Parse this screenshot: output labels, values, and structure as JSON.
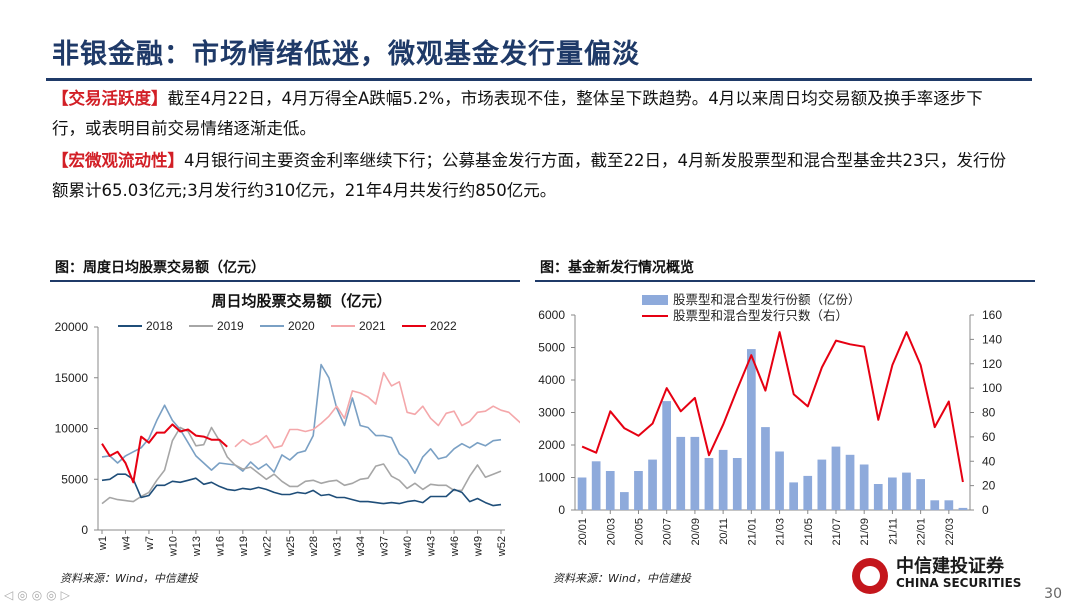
{
  "page": {
    "title": "非银金融：市场情绪低迷，微观基金发行量偏淡",
    "paragraphs": [
      {
        "tag": "【交易活跃度】",
        "text": "截至4月22日，4月万得全A跌幅5.2%，市场表现不佳，整体呈下跌趋势。4月以来周日均交易额及换手率逐步下行，或表明目前交易情绪逐渐走低。"
      },
      {
        "tag": "【宏微观流动性】",
        "text": "4月银行间主要资金利率继续下行；公募基金发行方面，截至22日，4月新发股票型和混合型基金共23只，发行份额累计65.03亿元;3月发行约310亿元，21年4月共发行约850亿元。"
      }
    ],
    "page_number": "30",
    "nav_icons": "◁◎◎◎▷"
  },
  "figure1": {
    "caption": "图：周度日均股票交易额（亿元）",
    "source": "资料来源：Wind，中信建投"
  },
  "figure2": {
    "caption": "图：基金新发行情况概览",
    "source": "资料来源：Wind，中信建投"
  },
  "logo": {
    "cn": "中信建投证券",
    "en": "CHINA SECURITIES",
    "color": "#c4161c"
  },
  "chart_data": [
    {
      "type": "line",
      "title": "周日均股票交易额（亿元）",
      "ylim": [
        0,
        20000
      ],
      "yticks": [
        0,
        5000,
        10000,
        15000,
        20000
      ],
      "x_tick_labels": [
        "w1",
        "w4",
        "w7",
        "w10",
        "w13",
        "w16",
        "w19",
        "w22",
        "w25",
        "w28",
        "w31",
        "w34",
        "w37",
        "w40",
        "w43",
        "w46",
        "w49",
        "w52"
      ],
      "series": [
        {
          "name": "2018",
          "color": "#1f4e79",
          "values": [
            4900,
            5000,
            5500,
            5500,
            5000,
            3200,
            3400,
            4400,
            4400,
            4800,
            4700,
            4900,
            5100,
            4500,
            4700,
            4300,
            4000,
            3900,
            4100,
            4000,
            4200,
            4000,
            3700,
            3500,
            3500,
            3700,
            3600,
            3900,
            3400,
            3500,
            3200,
            3200,
            3000,
            2800,
            2800,
            2700,
            2600,
            2700,
            2600,
            2800,
            2900,
            2700,
            3300,
            3300,
            3300,
            4000,
            3700,
            2800,
            3100,
            2700,
            2400,
            2500
          ]
        },
        {
          "name": "2019",
          "color": "#a6a6a6",
          "values": [
            2600,
            3200,
            3000,
            2900,
            2800,
            3300,
            3700,
            4900,
            5900,
            8800,
            10100,
            9700,
            8300,
            8400,
            10100,
            8800,
            7200,
            6400,
            6000,
            6200,
            5600,
            5000,
            5500,
            4800,
            4300,
            4300,
            4800,
            4900,
            4600,
            4800,
            4900,
            4400,
            4600,
            5000,
            5100,
            6300,
            6500,
            5300,
            4900,
            4100,
            4600,
            4000,
            4500,
            4400,
            4400,
            3900,
            3900,
            5300,
            6400,
            5200,
            5500,
            5800
          ]
        },
        {
          "name": "2020",
          "color": "#7aa0c4",
          "values": [
            7200,
            7300,
            6600,
            7300,
            7700,
            8100,
            9000,
            10800,
            12300,
            10800,
            9900,
            8600,
            7300,
            6600,
            5900,
            6600,
            6500,
            6400,
            5800,
            6700,
            6000,
            6500,
            5700,
            7400,
            6900,
            7600,
            7800,
            9300,
            16300,
            15000,
            12000,
            10300,
            13000,
            10300,
            10100,
            9300,
            9300,
            9100,
            7500,
            6900,
            5600,
            7200,
            8000,
            7000,
            7200,
            8000,
            8500,
            8100,
            8600,
            8300,
            8800,
            8900
          ]
        },
        {
          "name": "2021",
          "color": "#f4a7aa",
          "values": [
            null,
            null,
            null,
            null,
            null,
            null,
            null,
            null,
            null,
            null,
            null,
            null,
            null,
            null,
            null,
            null,
            null,
            8200,
            8900,
            8400,
            8700,
            9300,
            8100,
            8300,
            9900,
            9900,
            9700,
            9900,
            10500,
            11200,
            12200,
            11000,
            13700,
            13500,
            13100,
            12400,
            15500,
            14200,
            14600,
            11600,
            11400,
            12200,
            11000,
            10300,
            11500,
            11700,
            10300,
            10700,
            11600,
            11700,
            12200,
            11800,
            11600,
            10900,
            10200
          ]
        },
        {
          "name": "2022",
          "color": "#e60012",
          "values": [
            8500,
            7300,
            7700,
            6600,
            4700,
            9200,
            8600,
            9600,
            9600,
            10400,
            9700,
            9900,
            9300,
            9200,
            8900,
            8900,
            8200
          ]
        }
      ]
    },
    {
      "type": "bar",
      "categories": [
        "20/01",
        "20/02",
        "20/03",
        "20/04",
        "20/05",
        "20/06",
        "20/07",
        "20/08",
        "20/09",
        "20/10",
        "20/11",
        "20/12",
        "21/01",
        "21/02",
        "21/03",
        "21/04",
        "21/05",
        "21/06",
        "21/07",
        "21/08",
        "21/09",
        "21/10",
        "21/11",
        "21/12",
        "22/01",
        "22/02",
        "22/03",
        "22/04"
      ],
      "x_tick_labels": [
        "20/01",
        "20/03",
        "20/05",
        "20/07",
        "20/09",
        "20/11",
        "21/01",
        "21/03",
        "21/05",
        "21/07",
        "21/09",
        "21/11",
        "22/01",
        "22/03"
      ],
      "series": [
        {
          "name": "股票型和混合型发行份额（亿份）",
          "axis": "left",
          "color": "#8eaadb",
          "values": [
            1000,
            1500,
            1200,
            550,
            1200,
            1550,
            3350,
            2250,
            2250,
            1600,
            1850,
            1600,
            4950,
            2550,
            1800,
            850,
            1050,
            1550,
            1950,
            1700,
            1400,
            800,
            1000,
            1150,
            950,
            300,
            300,
            65
          ]
        },
        {
          "name": "股票型和混合型发行只数（右）",
          "axis": "right",
          "type": "line",
          "color": "#e60012",
          "values": [
            52,
            47,
            81,
            67,
            61,
            71,
            100,
            81,
            92,
            45,
            70,
            99,
            127,
            98,
            146,
            95,
            85,
            117,
            139,
            136,
            134,
            74,
            119,
            146,
            119,
            68,
            89,
            23
          ]
        }
      ],
      "ylim": [
        0,
        6000
      ],
      "yticks": [
        0,
        1000,
        2000,
        3000,
        4000,
        5000,
        6000
      ],
      "y2lim": [
        0,
        160
      ],
      "y2ticks": [
        0,
        20,
        40,
        60,
        80,
        100,
        120,
        140,
        160
      ]
    }
  ]
}
